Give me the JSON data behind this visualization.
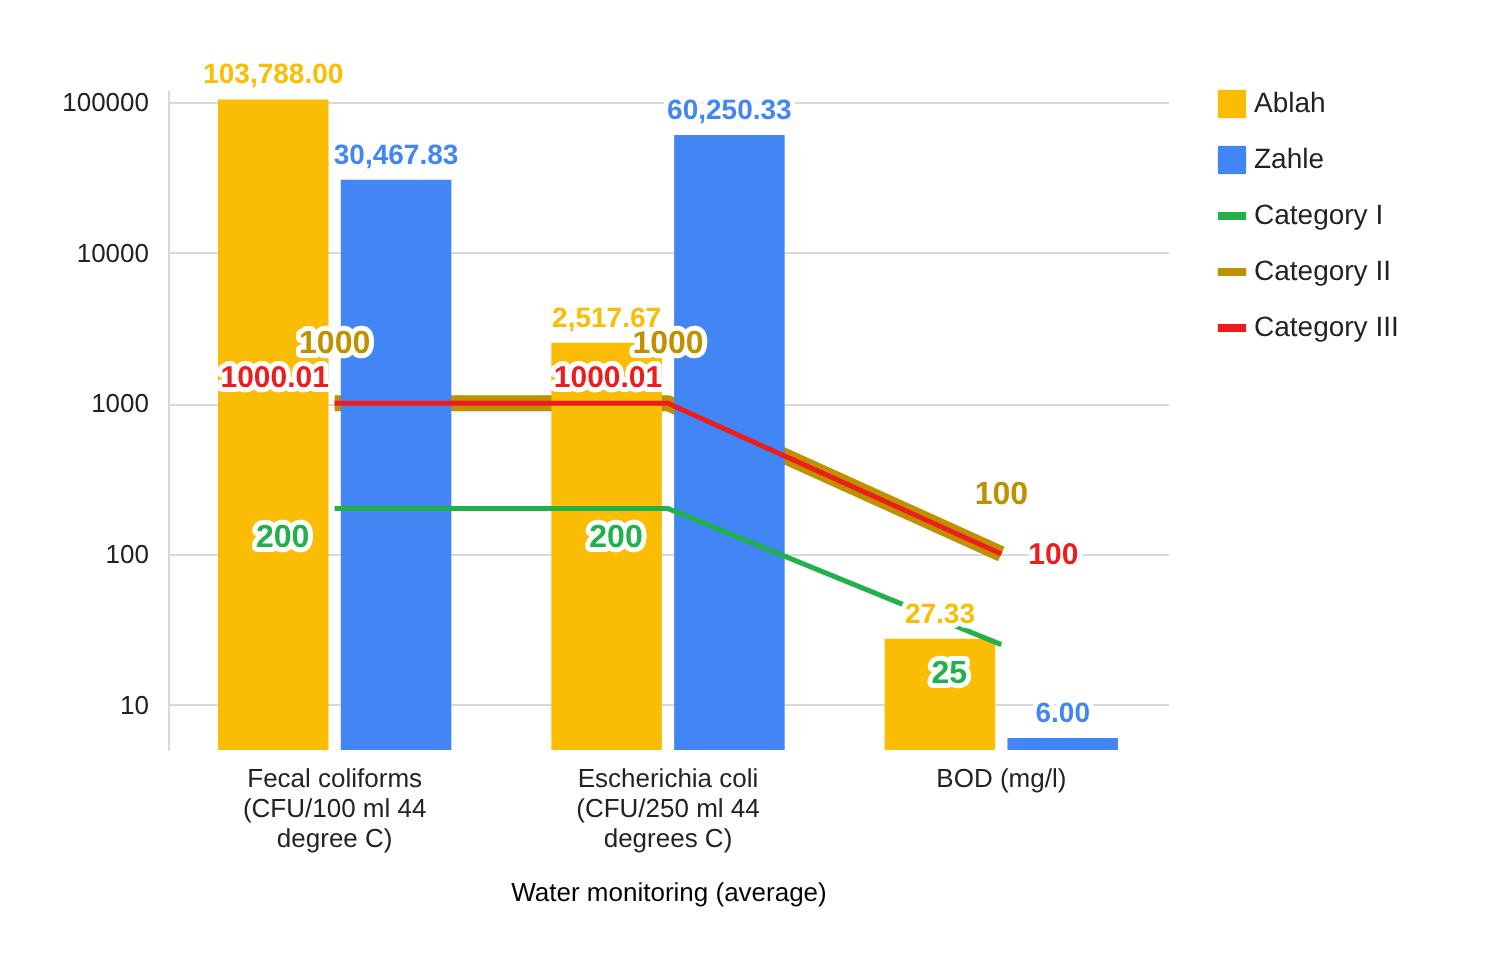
{
  "chart_data": {
    "type": "bar",
    "xlabel": "Water monitoring (average)",
    "categories": [
      "Fecal coliforms (CFU/100 ml 44 degree C)",
      "Escherichia coli (CFU/250 ml 44 degrees C)",
      "BOD (mg/l)"
    ],
    "series": [
      {
        "name": "Ablah",
        "color": "#fbbc04",
        "values": [
          103788,
          2517.67,
          27.33
        ],
        "value_labels": [
          "103,788.00",
          "2,517.67",
          "27.33"
        ]
      },
      {
        "name": "Zahle",
        "color": "#4285f4",
        "values": [
          30467.83,
          60250.33,
          6.0
        ],
        "value_labels": [
          "30,467.83",
          "60,250.33",
          "6.00"
        ]
      },
      {
        "name": "Category I",
        "type": "line",
        "color": "#22b04b",
        "values": [
          200,
          200,
          25
        ],
        "value_labels": [
          "200",
          "200",
          "25"
        ]
      },
      {
        "name": "Category II",
        "type": "line",
        "color": "#bf9000",
        "values": [
          1000,
          1000,
          100
        ],
        "value_labels": [
          "1000",
          "1000",
          "100"
        ]
      },
      {
        "name": "Category III",
        "type": "line",
        "color": "#ee1c1c",
        "values": [
          1000.01,
          1000.01,
          100
        ],
        "value_labels": [
          "1000.01",
          "1000.01",
          "100"
        ]
      }
    ],
    "log": true,
    "ylim": [
      5,
      120000
    ],
    "yticks": [
      10,
      100,
      1000,
      10000,
      100000
    ],
    "grid": "y",
    "legend": "top right"
  }
}
